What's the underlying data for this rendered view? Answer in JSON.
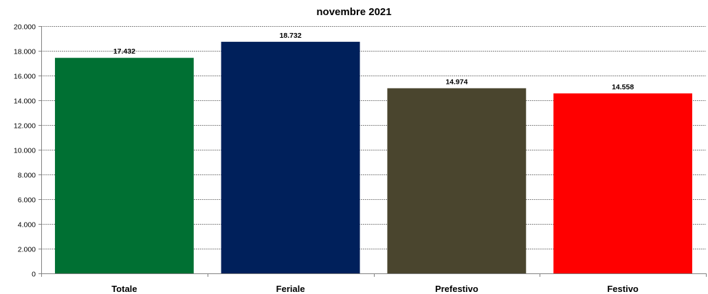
{
  "chart_data": {
    "type": "bar",
    "title": "novembre 2021",
    "xlabel": "",
    "ylabel": "",
    "categories": [
      "Totale",
      "Feriale",
      "Prefestivo",
      "Festivo"
    ],
    "values": [
      17432,
      18732,
      14974,
      14558
    ],
    "value_labels": [
      "17.432",
      "18.732",
      "14.974",
      "14.558"
    ],
    "bar_colors": [
      "#007033",
      "#00205B",
      "#4A452E",
      "#FF0000"
    ],
    "ylim": [
      0,
      20000
    ],
    "y_ticks": [
      0,
      2000,
      4000,
      6000,
      8000,
      10000,
      12000,
      14000,
      16000,
      18000,
      20000
    ],
    "y_tick_labels": [
      "0",
      "2.000",
      "4.000",
      "6.000",
      "8.000",
      "10.000",
      "12.000",
      "14.000",
      "16.000",
      "18.000",
      "20.000"
    ],
    "grid": true,
    "legend": "none"
  }
}
